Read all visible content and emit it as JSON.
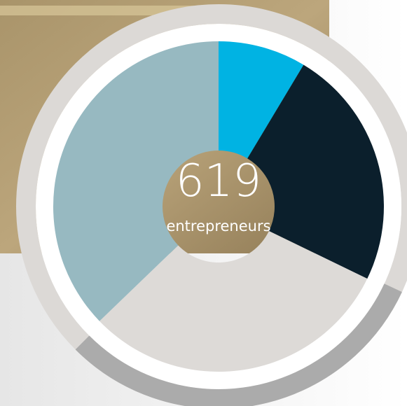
{
  "chart_data": {
    "type": "donut",
    "values": [
      8.6,
      23.6,
      30.6,
      37.2
    ],
    "colors": [
      "#00b3e3",
      "#0b1f2c",
      "#dddad7",
      "#97b9c1"
    ],
    "center_value": 619,
    "center_label": "entrepreneurs"
  }
}
